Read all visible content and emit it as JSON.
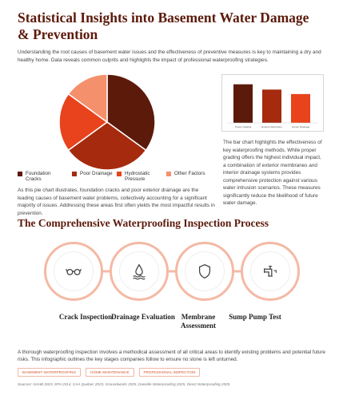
{
  "title": "Statistical Insights into Basement Water Damage & Prevention",
  "intro": "Understanding the root causes of basement water issues and the effectiveness of preventive measures is key to maintaining a dry and healthy home. Data reveals common culprits and highlights the impact of professional waterproofing strategies.",
  "chart_data": [
    {
      "type": "pie",
      "title": "",
      "categories": [
        "Foundation Cracks",
        "Poor Drainage",
        "Hydrostatic Pressure",
        "Other Factors"
      ],
      "values": [
        35,
        30,
        20,
        15
      ],
      "colors": [
        "#5c1a0b",
        "#a62a0d",
        "#e8431c",
        "#f4906c"
      ],
      "legend_placement": "bottom"
    },
    {
      "type": "bar",
      "title": "",
      "categories": [
        "Proper Grading",
        "Exterior Membrane",
        "Interior Drainage"
      ],
      "values": [
        95,
        82,
        71
      ],
      "ylim": [
        0,
        110
      ],
      "colors": [
        "#5c1a0b",
        "#a62a0d",
        "#e8431c"
      ],
      "grid": false
    }
  ],
  "pie_description": "As this pie chart illustrates, foundation cracks and poor exterior drainage are the leading causes of basement water problems, collectively accounting for a significant majority of issues. Addressing these areas first often yields the most impactful results in prevention.",
  "bar_description": "The bar chart highlights the effectiveness of key waterproofing methods. While proper grading offers the highest individual impact, a combination of exterior membranes and interior drainage systems provides comprehensive protection against various water intrusion scenarios. These measures significantly reduce the likelihood of future water damage.",
  "section_title": "The Comprehensive Waterproofing Inspection Process",
  "steps": [
    {
      "label": "Crack Inspection",
      "icon": "glasses-icon"
    },
    {
      "label": "Drainage Evaluation",
      "icon": "water-drop-icon"
    },
    {
      "label": "Membrane Assessment",
      "icon": "shield-icon"
    },
    {
      "label": "Sump Pump Test",
      "icon": "pipe-icon"
    }
  ],
  "bottom_description": "A thorough waterproofing inspection involves a methodical assessment of all critical areas to identify existing problems and potential future risks. This infographic outlines the key stages companies follow to ensure no stone is left unturned.",
  "tags": [
    "BASEMENT WATERPROOFING",
    "HOME MAINTENANCE",
    "PROFESSIONAL INSPECTION"
  ],
  "sources": "Sources: NAHB 2023, EPA 2014, CAA Quebec 2023, Groundworks 2025, Danielle Waterproofing 2025, Direct Waterproofing 2025.",
  "colors": {
    "accent": "#5c1a0b",
    "ring": "#f4b9a4",
    "tag": "#d4572b"
  }
}
